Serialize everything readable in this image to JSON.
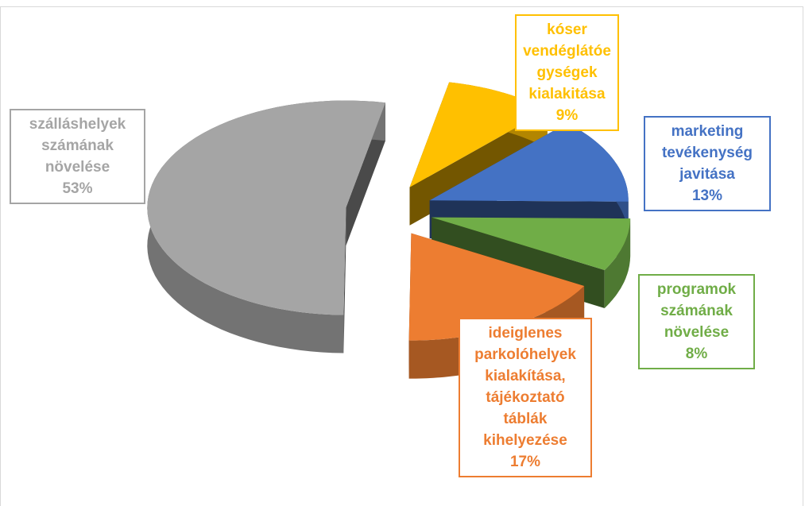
{
  "chart_data": {
    "type": "pie",
    "categories": [
      "kóser vendéglátóegységek kialakitása",
      "marketing tevékenység javitása",
      "programok számának növelése",
      "ideiglenes parkolóhelyek kialakítása, tájékoztató táblák kihelyezése",
      "szálláshelyek számának növelése"
    ],
    "values": [
      9,
      13,
      8,
      17,
      53
    ],
    "value_labels": [
      "9%",
      "13%",
      "8%",
      "17%",
      "53%"
    ],
    "colors": [
      "#ffc000",
      "#4472c4",
      "#70ad47",
      "#ed7d31",
      "#a5a5a5"
    ]
  }
}
